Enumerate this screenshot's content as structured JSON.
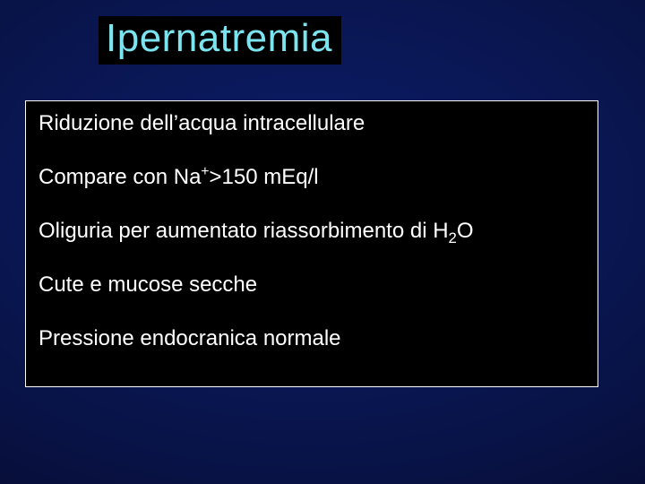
{
  "slide": {
    "title": "Ipernatremia",
    "title_color": "#7be4ee",
    "title_bg": "#000000",
    "background_gradient_colors": [
      "#0c1c68",
      "#0a1858",
      "#081244",
      "#050b2e",
      "#020414",
      "#000008"
    ],
    "content_border_color": "#ffffff",
    "content_bg": "#000000",
    "text_color": "#ffffff",
    "title_fontsize": 44,
    "body_fontsize": 24,
    "bullets": {
      "b1": "Riduzione dell’acqua intracellulare",
      "b2_pre": "Compare con Na",
      "b2_sup": "+",
      "b2_post": ">150 mEq/l",
      "b3_pre": "Oliguria per aumentato riassorbimento di H",
      "b3_sub": "2",
      "b3_post": "O",
      "b4": "Cute e mucose secche",
      "b5": "Pressione endocranica normale"
    }
  }
}
